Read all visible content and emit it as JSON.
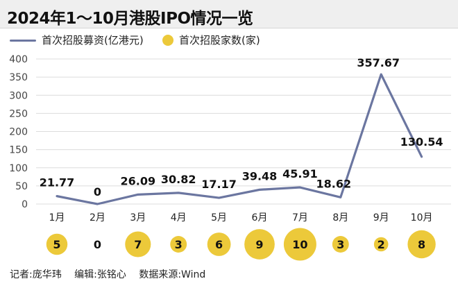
{
  "title": "2024年1～10月港股IPO情况一览",
  "footer": {
    "reporter": "记者:庞华玮",
    "editor": "编辑:张铭心",
    "source": "数据来源:Wind"
  },
  "colors": {
    "line": "#6b76a0",
    "bubble": "#ecc93a",
    "grid": "#dcdcdc"
  },
  "chart_data": {
    "type": "line",
    "categories": [
      "1月",
      "2月",
      "3月",
      "4月",
      "5月",
      "6月",
      "7月",
      "8月",
      "9月",
      "10月"
    ],
    "series": [
      {
        "name": "首次招股募资(亿港元)",
        "type": "line",
        "values": [
          21.77,
          0,
          26.09,
          30.82,
          17.17,
          39.48,
          45.91,
          18.62,
          357.67,
          130.54
        ],
        "labels": [
          "21.77",
          "0",
          "26.09",
          "30.82",
          "17.17",
          "39.48",
          "45.91",
          "18.62",
          "357.67",
          "130.54"
        ]
      },
      {
        "name": "首次招股家数(家)",
        "type": "bubble",
        "values": [
          5,
          0,
          7,
          3,
          6,
          9,
          10,
          3,
          2,
          8
        ]
      }
    ],
    "yticks": [
      "0",
      "50",
      "100",
      "150",
      "200",
      "250",
      "300",
      "350",
      "400"
    ],
    "ylim": [
      0,
      400
    ],
    "grid": true,
    "legend_position": "top-left"
  }
}
